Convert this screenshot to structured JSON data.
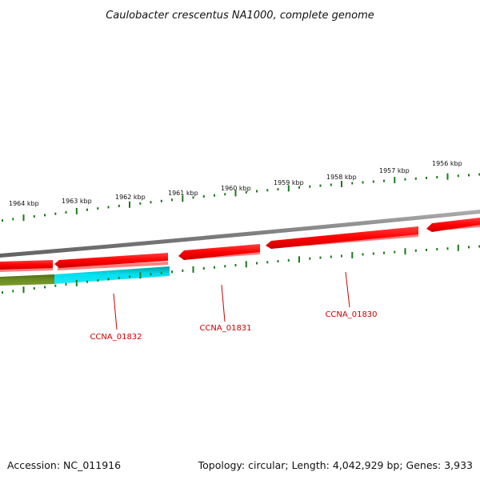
{
  "title": "Caulobacter crescentus NA1000, complete genome",
  "colors": {
    "background": "#ffffff",
    "tick": "#1a7a1a",
    "backbone": "#7f7f7f",
    "gene_red": "#ff0000",
    "gene_red_dark": "#c00000",
    "gene_red_shadow": "#ff7f7f",
    "gene_cyan": "#00d8e8",
    "gene_cyan_dark": "#008b8b",
    "gene_olive": "#6b8e23",
    "label": "#cc0000"
  },
  "scale": {
    "labels": [
      "1964 kbp",
      "1963 kbp",
      "1962 kbp",
      "1961 kbp",
      "1960 kbp",
      "1959 kbp",
      "1958 kbp",
      "1957 kbp",
      "1956 kbp"
    ]
  },
  "genes": {
    "labels": [
      "CCNA_01832",
      "CCNA_01831",
      "CCNA_01830"
    ]
  },
  "footer": {
    "accession": "Accession: NC_011916",
    "summary": "Topology: circular; Length: 4,042,929 bp; Genes: 3,933"
  }
}
